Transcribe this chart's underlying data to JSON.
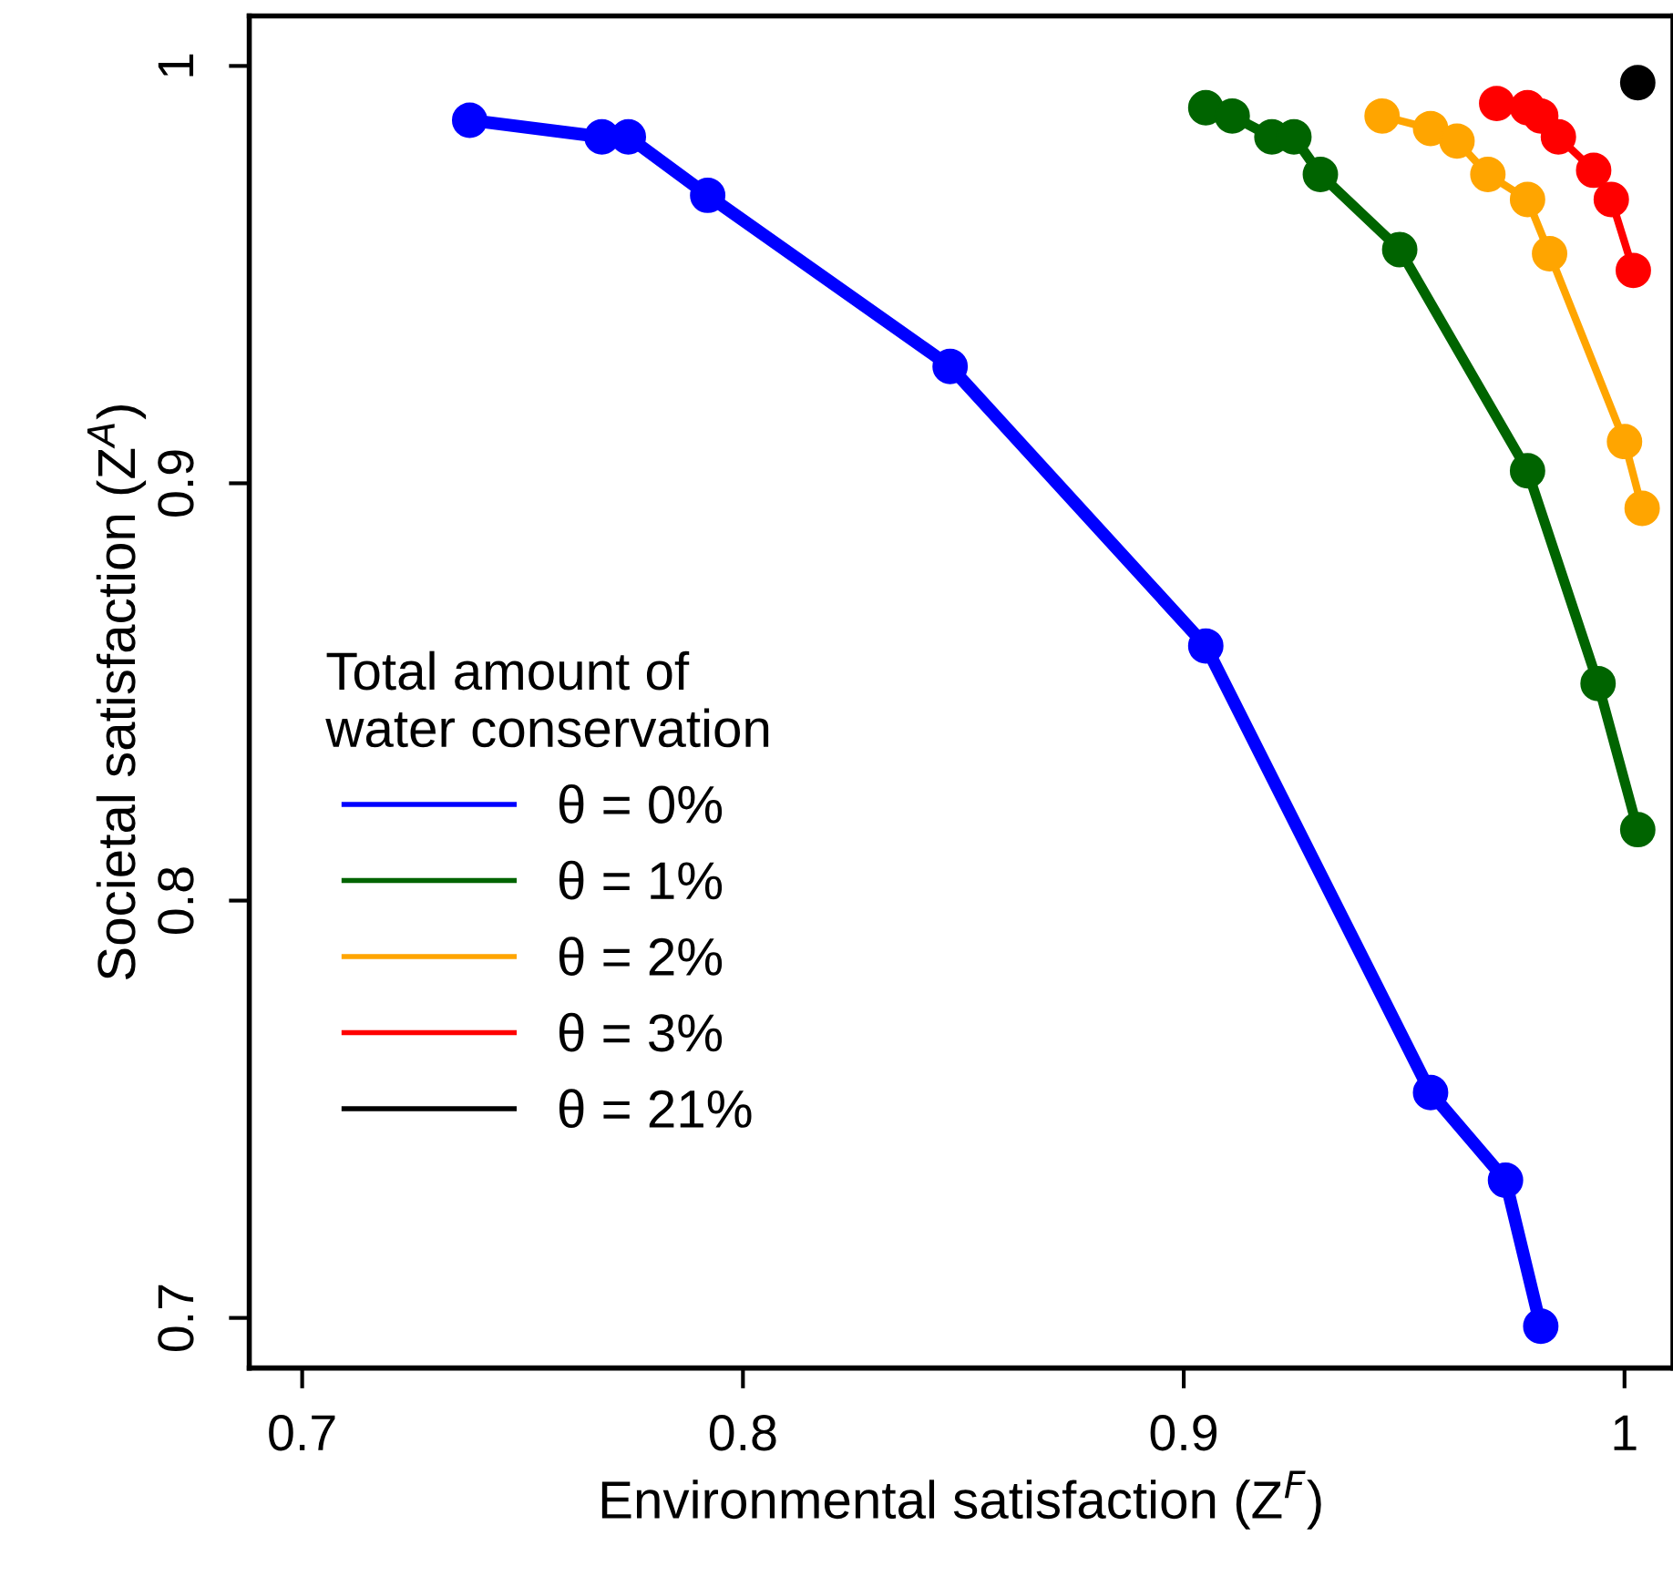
{
  "chart_data": {
    "type": "line",
    "xlabel": "Environmental satisfaction (Z$^{F}$)",
    "ylabel": "Societal satisfaction (Z$^{A}$)",
    "legend_title": "Total amount of\nwater conservation",
    "legend": "left",
    "marker": "circle",
    "grid": false,
    "xlim": [
      0.688,
      1.011
    ],
    "ylim": [
      0.688,
      1.012
    ],
    "xticks": [
      0.7,
      0.8,
      0.9,
      1
    ],
    "yticks": [
      0.7,
      0.8,
      0.9,
      1
    ],
    "series": [
      {
        "name": "θ = 0%",
        "color": "#0000ff",
        "x": [
          0.738,
          0.768,
          0.774,
          0.792,
          0.847,
          0.905,
          0.956,
          0.973,
          0.981
        ],
        "values": [
          0.987,
          0.983,
          0.983,
          0.969,
          0.928,
          0.861,
          0.754,
          0.733,
          0.698
        ]
      },
      {
        "name": "θ = 1%",
        "color": "#006400",
        "x": [
          0.905,
          0.911,
          0.92,
          0.925,
          0.931,
          0.949,
          0.978,
          0.994,
          1.003
        ],
        "values": [
          0.99,
          0.988,
          0.983,
          0.983,
          0.974,
          0.956,
          0.903,
          0.852,
          0.817
        ]
      },
      {
        "name": "θ = 2%",
        "color": "#ffa500",
        "x": [
          0.945,
          0.956,
          0.962,
          0.969,
          0.978,
          0.983,
          1.0,
          1.004
        ],
        "values": [
          0.988,
          0.985,
          0.982,
          0.974,
          0.968,
          0.955,
          0.91,
          0.894
        ]
      },
      {
        "name": "θ = 3%",
        "color": "#ff0000",
        "x": [
          0.971,
          0.978,
          0.981,
          0.985,
          0.993,
          0.997,
          1.002
        ],
        "values": [
          0.991,
          0.99,
          0.988,
          0.983,
          0.975,
          0.968,
          0.951
        ]
      },
      {
        "name": "θ = 21%",
        "color": "#000000",
        "x": [
          1.003
        ],
        "values": [
          0.996
        ]
      }
    ]
  }
}
